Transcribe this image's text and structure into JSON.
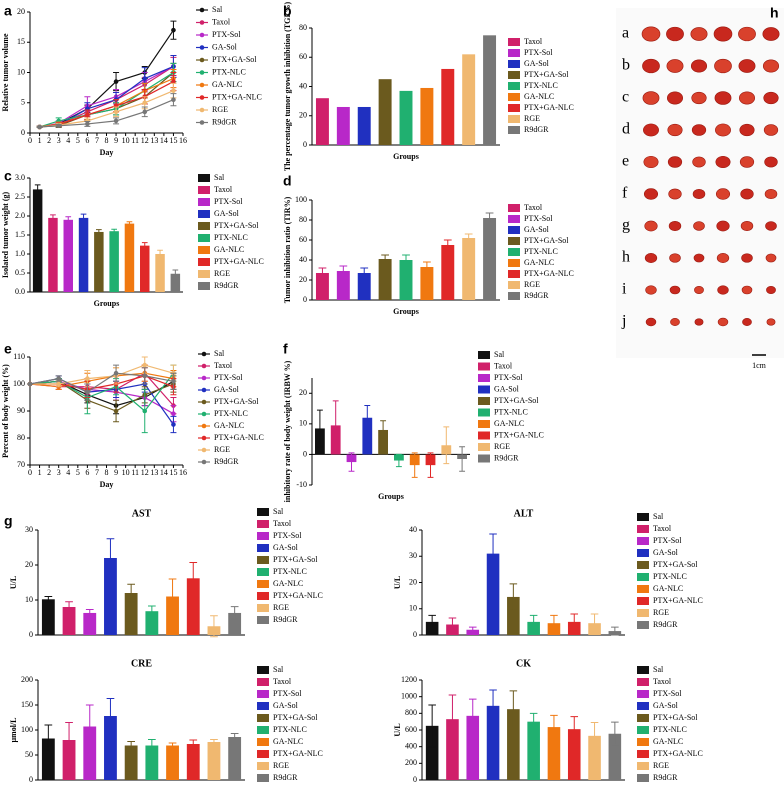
{
  "chart_data": [
    {
      "type": "line",
      "panel": "a",
      "ylabel": "Relative tumor volume",
      "xlabel": "Day",
      "x": [
        1,
        3,
        6,
        9,
        12,
        15
      ],
      "xlim": [
        0,
        16
      ],
      "xticks": [
        0,
        1,
        2,
        3,
        4,
        5,
        6,
        7,
        8,
        9,
        10,
        11,
        12,
        13,
        14,
        15,
        16
      ],
      "ylim": [
        0,
        20
      ],
      "yticks": [
        0,
        5,
        10,
        15,
        20
      ],
      "series": [
        {
          "name": "Sal",
          "color": "#111111",
          "values": [
            1,
            1.5,
            4,
            8.5,
            10,
            17
          ],
          "errors": [
            0.1,
            0.3,
            0.6,
            1.5,
            1.0,
            1.5
          ]
        },
        {
          "name": "Taxol",
          "color": "#d0206a",
          "values": [
            1,
            1.4,
            3.5,
            5.5,
            8,
            11
          ],
          "errors": [
            0.1,
            0.3,
            0.8,
            1.2,
            1.2,
            1.5
          ]
        },
        {
          "name": "PTX-Sol",
          "color": "#b828c8",
          "values": [
            1,
            1.6,
            4.5,
            6,
            8.5,
            11
          ],
          "errors": [
            0.1,
            0.4,
            1.5,
            1.2,
            1.5,
            1.8
          ]
        },
        {
          "name": "GA-Sol",
          "color": "#2030c0",
          "values": [
            1,
            1.3,
            4,
            5.5,
            9,
            11
          ],
          "errors": [
            0.1,
            0.3,
            1.0,
            1.2,
            1.8,
            1.8
          ]
        },
        {
          "name": "PTX+GA-Sol",
          "color": "#6b5a1e",
          "values": [
            1,
            1.2,
            3,
            4,
            6,
            10
          ],
          "errors": [
            0.1,
            0.3,
            0.8,
            1.0,
            1.2,
            1.5
          ]
        },
        {
          "name": "PTX-NLC",
          "color": "#20b070",
          "values": [
            1,
            2,
            3,
            4,
            7,
            10
          ],
          "errors": [
            0.1,
            0.5,
            0.8,
            1.0,
            1.2,
            1.5
          ]
        },
        {
          "name": "GA-NLC",
          "color": "#f07810",
          "values": [
            1,
            1.5,
            3,
            4.5,
            7,
            9
          ],
          "errors": [
            0.1,
            0.3,
            0.8,
            1.0,
            1.2,
            1.5
          ]
        },
        {
          "name": "PTX+GA-NLC",
          "color": "#e02828",
          "values": [
            1,
            1.4,
            3,
            4.5,
            6,
            8.5
          ],
          "errors": [
            0.1,
            0.3,
            0.8,
            1.0,
            1.2,
            1.5
          ]
        },
        {
          "name": "RGE",
          "color": "#f0b870",
          "values": [
            1,
            1.3,
            2,
            3.5,
            5,
            7
          ],
          "errors": [
            0.1,
            0.3,
            0.5,
            0.8,
            1.0,
            1.2
          ]
        },
        {
          "name": "R9dGR",
          "color": "#777777",
          "values": [
            1,
            1.2,
            1.5,
            2,
            3.5,
            5.5
          ],
          "errors": [
            0.1,
            0.2,
            0.4,
            0.5,
            0.8,
            1.0
          ]
        }
      ]
    },
    {
      "type": "bar",
      "panel": "b",
      "ylabel": "The percentage tumor growth inhibition (TGI %)",
      "xlabel": "Groups",
      "categories": [
        "Taxol",
        "PTX-Sol",
        "GA-Sol",
        "PTX+GA-Sol",
        "PTX-NLC",
        "GA-NLC",
        "PTX+GA-NLC",
        "RGE",
        "R9dGR"
      ],
      "values": [
        32,
        26,
        26,
        45,
        37,
        39,
        52,
        62,
        75
      ],
      "colors": [
        "#d0206a",
        "#b828c8",
        "#2030c0",
        "#6b5a1e",
        "#20b070",
        "#f07810",
        "#e02828",
        "#f0b870",
        "#777777"
      ],
      "ylim": [
        0,
        80
      ],
      "yticks": [
        0,
        20,
        40,
        60,
        80
      ]
    },
    {
      "type": "bar",
      "panel": "c",
      "ylabel": "Isolated tumor weight (g)",
      "xlabel": "Groups",
      "categories": [
        "Sal",
        "Taxol",
        "PTX-Sol",
        "GA-Sol",
        "PTX+GA-Sol",
        "PTX-NLC",
        "GA-NLC",
        "PTX+GA-NLC",
        "RGE",
        "R9dGR"
      ],
      "values": [
        2.7,
        1.95,
        1.9,
        1.95,
        1.58,
        1.6,
        1.8,
        1.22,
        1.0,
        0.48
      ],
      "errors": [
        0.12,
        0.08,
        0.08,
        0.1,
        0.06,
        0.05,
        0.05,
        0.08,
        0.1,
        0.1
      ],
      "colors": [
        "#111111",
        "#d0206a",
        "#b828c8",
        "#2030c0",
        "#6b5a1e",
        "#20b070",
        "#f07810",
        "#e02828",
        "#f0b870",
        "#777777"
      ],
      "ylim": [
        0,
        3.0
      ],
      "yticks": [
        {
          "value": 0,
          "label": "0.0"
        },
        0.5,
        {
          "value": 1,
          "label": "1.0"
        },
        1.5,
        {
          "value": 2,
          "label": "2.0"
        },
        2.5,
        {
          "value": 3,
          "label": "3.0"
        }
      ]
    },
    {
      "type": "bar",
      "panel": "d",
      "ylabel": "Tumor inhibition ratio (TIR%)",
      "xlabel": "Groups",
      "categories": [
        "Taxol",
        "PTX-Sol",
        "GA-Sol",
        "PTX+GA-Sol",
        "PTX-NLC",
        "GA-NLC",
        "PTX+GA-NLC",
        "RGE",
        "R9dGR"
      ],
      "values": [
        27,
        29,
        27,
        41,
        40,
        33,
        55,
        62,
        82
      ],
      "errors": [
        5,
        5,
        5,
        4,
        5,
        5,
        5,
        4,
        5
      ],
      "colors": [
        "#d0206a",
        "#b828c8",
        "#2030c0",
        "#6b5a1e",
        "#20b070",
        "#f07810",
        "#e02828",
        "#f0b870",
        "#777777"
      ],
      "ylim": [
        0,
        100
      ],
      "yticks": [
        0,
        20,
        40,
        60,
        80,
        100
      ]
    },
    {
      "type": "line",
      "panel": "e",
      "ylabel": "Percent of body weight (%)",
      "xlabel": "Day",
      "x": [
        0,
        3,
        6,
        9,
        12,
        15
      ],
      "xlim": [
        0,
        16
      ],
      "xticks": [
        0,
        1,
        2,
        3,
        4,
        5,
        6,
        7,
        8,
        9,
        10,
        11,
        12,
        13,
        14,
        15,
        16
      ],
      "ylim": [
        70,
        110
      ],
      "yticks": [
        70,
        80,
        90,
        100,
        110
      ],
      "series": [
        {
          "name": "Sal",
          "color": "#111111",
          "values": [
            100,
            101,
            96,
            92,
            95,
            101
          ],
          "errors": [
            0,
            1,
            3,
            3,
            3,
            3
          ]
        },
        {
          "name": "Taxol",
          "color": "#d0206a",
          "values": [
            100,
            99,
            99,
            98,
            104,
            92
          ],
          "errors": [
            0,
            1,
            3,
            3,
            3,
            3
          ]
        },
        {
          "name": "PTX-Sol",
          "color": "#b828c8",
          "values": [
            100,
            101,
            98,
            97,
            95,
            89
          ],
          "errors": [
            0,
            1,
            3,
            3,
            3,
            3
          ]
        },
        {
          "name": "GA-Sol",
          "color": "#2030c0",
          "values": [
            100,
            102,
            97,
            98,
            100,
            85
          ],
          "errors": [
            0,
            1,
            3,
            3,
            3,
            3
          ]
        },
        {
          "name": "PTX+GA-Sol",
          "color": "#6b5a1e",
          "values": [
            100,
            101,
            94,
            90,
            96,
            100
          ],
          "errors": [
            0,
            1,
            3,
            4,
            3,
            3
          ]
        },
        {
          "name": "PTX-NLC",
          "color": "#20b070",
          "values": [
            100,
            101,
            95,
            99,
            90,
            104
          ],
          "errors": [
            0,
            1,
            6,
            3,
            8,
            3
          ]
        },
        {
          "name": "GA-NLC",
          "color": "#f07810",
          "values": [
            100,
            99,
            101,
            103,
            104,
            102
          ],
          "errors": [
            0,
            1,
            3,
            3,
            3,
            3
          ]
        },
        {
          "name": "PTX+GA-NLC",
          "color": "#e02828",
          "values": [
            100,
            100,
            98,
            100,
            103,
            99
          ],
          "errors": [
            0,
            1,
            3,
            3,
            3,
            3
          ]
        },
        {
          "name": "RGE",
          "color": "#f0b870",
          "values": [
            100,
            100,
            102,
            103,
            107,
            104
          ],
          "errors": [
            0,
            1,
            3,
            3,
            3,
            3
          ]
        },
        {
          "name": "R9dGR",
          "color": "#777777",
          "values": [
            100,
            102,
            97,
            104,
            103,
            101
          ],
          "errors": [
            0,
            1,
            3,
            3,
            3,
            3
          ]
        }
      ]
    },
    {
      "type": "bar",
      "panel": "f",
      "ylabel": "inhibitory rate of body weight (IRBW %)",
      "xlabel": "Groups",
      "categories": [
        "Sal",
        "Taxol",
        "PTX-Sol",
        "GA-Sol",
        "PTX+GA-Sol",
        "PTX-NLC",
        "GA-NLC",
        "PTX+GA-NLC",
        "RGE",
        "R9dGR"
      ],
      "values": [
        8.5,
        9.5,
        -2.5,
        12,
        8,
        -2,
        -3.5,
        -3.5,
        3,
        -1.5
      ],
      "errors": [
        6,
        8,
        3,
        4,
        3,
        2,
        4,
        4,
        6,
        4
      ],
      "colors": [
        "#111111",
        "#d0206a",
        "#b828c8",
        "#2030c0",
        "#6b5a1e",
        "#20b070",
        "#f07810",
        "#e02828",
        "#f0b870",
        "#777777"
      ],
      "ylim": [
        -10,
        25
      ],
      "yticks": [
        -10,
        0,
        10,
        20
      ]
    },
    {
      "type": "bar",
      "panel": "g",
      "title": "AST",
      "ylabel": "U/L",
      "categories": [
        "Sal",
        "Taxol",
        "PTX-Sol",
        "GA-Sol",
        "PTX+GA-Sol",
        "PTX-NLC",
        "GA-NLC",
        "PTX+GA-NLC",
        "RGE",
        "R9dGR"
      ],
      "values": [
        10.2,
        8,
        6.3,
        22,
        12,
        6.8,
        11,
        16.2,
        2.5,
        6.3
      ],
      "errors": [
        0.8,
        1.5,
        1,
        5.5,
        2.5,
        1.5,
        5,
        4.5,
        3,
        1.8
      ],
      "colors": [
        "#111111",
        "#d0206a",
        "#b828c8",
        "#2030c0",
        "#6b5a1e",
        "#20b070",
        "#f07810",
        "#e02828",
        "#f0b870",
        "#777777"
      ],
      "ylim": [
        0,
        30
      ],
      "yticks": [
        0,
        10,
        20,
        30
      ]
    },
    {
      "type": "bar",
      "title": "ALT",
      "ylabel": "U/L",
      "categories": [
        "Sal",
        "Taxol",
        "PTX-Sol",
        "GA-Sol",
        "PTX+GA-Sol",
        "PTX-NLC",
        "GA-NLC",
        "PTX+GA-NLC",
        "RGE",
        "R9dGR"
      ],
      "values": [
        5,
        4,
        2,
        31,
        14.5,
        5,
        4.5,
        5,
        4.5,
        1.5
      ],
      "errors": [
        2.5,
        2.5,
        1,
        7.5,
        5,
        2.5,
        3,
        3,
        3.5,
        1.5
      ],
      "colors": [
        "#111111",
        "#d0206a",
        "#b828c8",
        "#2030c0",
        "#6b5a1e",
        "#20b070",
        "#f07810",
        "#e02828",
        "#f0b870",
        "#777777"
      ],
      "ylim": [
        0,
        40
      ],
      "yticks": [
        0,
        10,
        20,
        30,
        40
      ]
    },
    {
      "type": "bar",
      "title": "CRE",
      "ylabel": "μmol/L",
      "categories": [
        "Sal",
        "Taxol",
        "PTX-Sol",
        "GA-Sol",
        "PTX+GA-Sol",
        "PTX-NLC",
        "GA-NLC",
        "PTX+GA-NLC",
        "RGE",
        "R9dGR"
      ],
      "values": [
        83,
        80,
        107,
        128,
        69,
        69,
        69,
        72,
        76,
        86
      ],
      "errors": [
        27,
        35,
        43,
        35,
        8,
        12,
        5,
        8,
        5,
        7
      ],
      "colors": [
        "#111111",
        "#d0206a",
        "#b828c8",
        "#2030c0",
        "#6b5a1e",
        "#20b070",
        "#f07810",
        "#e02828",
        "#f0b870",
        "#777777"
      ],
      "ylim": [
        0,
        200
      ],
      "yticks": [
        0,
        50,
        100,
        150,
        200
      ]
    },
    {
      "type": "bar",
      "title": "CK",
      "ylabel": "U/L",
      "categories": [
        "Sal",
        "Taxol",
        "PTX-Sol",
        "GA-Sol",
        "PTX+GA-Sol",
        "PTX-NLC",
        "GA-NLC",
        "PTX+GA-NLC",
        "RGE",
        "R9dGR"
      ],
      "values": [
        650,
        730,
        770,
        890,
        850,
        700,
        635,
        610,
        530,
        555
      ],
      "errors": [
        250,
        290,
        200,
        190,
        220,
        100,
        140,
        150,
        160,
        140
      ],
      "colors": [
        "#111111",
        "#d0206a",
        "#b828c8",
        "#2030c0",
        "#6b5a1e",
        "#20b070",
        "#f07810",
        "#e02828",
        "#f0b870",
        "#777777"
      ],
      "ylim": [
        0,
        1200
      ],
      "yticks": [
        0,
        200,
        400,
        600,
        800,
        1000,
        1200
      ]
    }
  ],
  "photo": {
    "panel": "h",
    "rows": [
      "a",
      "b",
      "c",
      "d",
      "e",
      "f",
      "g",
      "h",
      "i",
      "j"
    ],
    "scale": "1cm"
  }
}
